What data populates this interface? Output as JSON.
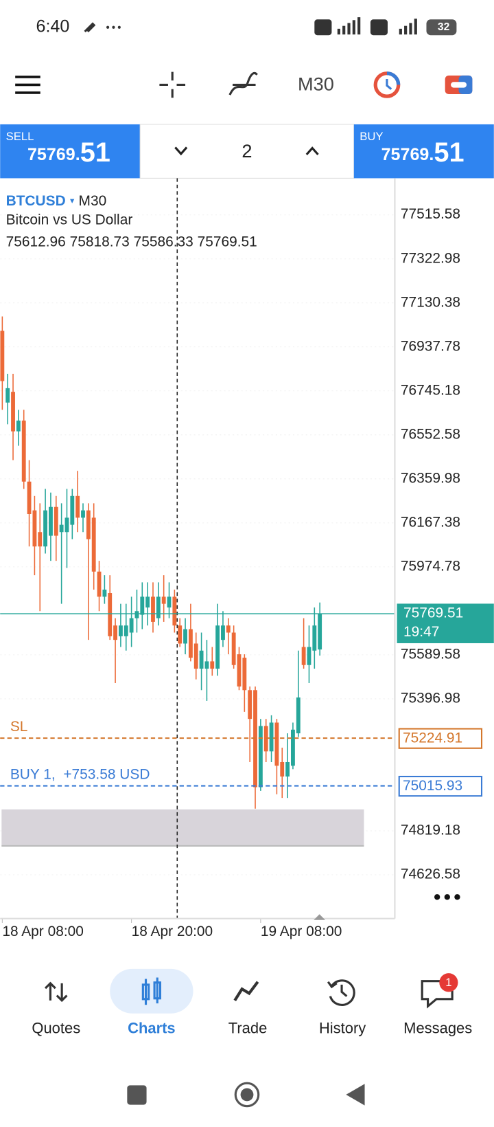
{
  "status_bar": {
    "time": "6:40",
    "battery": "32"
  },
  "toolbar": {
    "timeframe": "M30"
  },
  "trade_panel": {
    "sell": {
      "label": "SELL",
      "price_main": "75769.",
      "price_pips": "51"
    },
    "volume": "2",
    "buy": {
      "label": "BUY",
      "price_main": "75769.",
      "price_pips": "51"
    }
  },
  "chart_data": {
    "type": "candlestick",
    "symbol": "BTCUSD",
    "timeframe": "M30",
    "description": "Bitcoin vs US Dollar",
    "up_color": "#26a69a",
    "down_color": "#ec6a38",
    "open": [
      77008,
      76694,
      76741,
      76568,
      76615,
      76348,
      76222,
      76127,
      76064,
      76111,
      76237,
      76127,
      76127,
      76159,
      76285,
      76190,
      76222,
      76190,
      75954,
      75844,
      75860,
      75718,
      75671,
      75671,
      75687,
      75750,
      75765,
      75797,
      75844,
      75750,
      75844,
      75797,
      75844,
      75718,
      75639,
      75702,
      75639,
      75529,
      75529,
      75561,
      75529,
      75655,
      75718,
      75687,
      75592,
      75577,
      75435,
      75435,
      75010,
      75278,
      75167,
      75293,
      75120,
      75057,
      75104,
      75246,
      75624,
      75545,
      75608,
      75612.96
    ],
    "high": [
      77071,
      76820,
      76820,
      76662,
      76662,
      76442,
      76285,
      76253,
      76316,
      76300,
      76285,
      76253,
      76316,
      76316,
      76395,
      76253,
      76253,
      76253,
      76001,
      75938,
      75938,
      75750,
      75813,
      75813,
      75844,
      75875,
      75907,
      75907,
      75907,
      75907,
      75938,
      75907,
      75875,
      75750,
      75750,
      75813,
      75687,
      75687,
      75655,
      75624,
      75813,
      75781,
      75750,
      75718,
      75624,
      75592,
      75451,
      75451,
      75309,
      75309,
      75325,
      75309,
      75183,
      75246,
      75293,
      75608,
      75750,
      75718,
      75797,
      75818.73
    ],
    "low": [
      76662,
      76599,
      76442,
      76505,
      76316,
      76064,
      75938,
      75781,
      76033,
      76001,
      76001,
      75813,
      75970,
      76096,
      76127,
      76127,
      75655,
      75875,
      75781,
      75813,
      75655,
      75466,
      75624,
      75608,
      75624,
      75687,
      75702,
      75718,
      75687,
      75718,
      75734,
      75750,
      75687,
      75624,
      75592,
      75561,
      75482,
      75435,
      75388,
      75498,
      75498,
      75624,
      75592,
      75529,
      75435,
      75340,
      75120,
      74916,
      74994,
      75120,
      75120,
      74979,
      74963,
      74963,
      75089,
      75230,
      75529,
      75466,
      75529,
      75586.33
    ],
    "close": [
      76788,
      76757,
      76568,
      76615,
      76348,
      76206,
      76064,
      76064,
      76222,
      76237,
      76111,
      76159,
      76190,
      76285,
      76190,
      76222,
      76096,
      75954,
      75844,
      75875,
      75671,
      75655,
      75718,
      75718,
      75750,
      75781,
      75844,
      75844,
      75734,
      75844,
      75813,
      75844,
      75718,
      75639,
      75702,
      75577,
      75529,
      75608,
      75561,
      75529,
      75718,
      75718,
      75687,
      75545,
      75451,
      75435,
      75309,
      75010,
      75278,
      75167,
      75293,
      75104,
      75057,
      75120,
      75262,
      75403,
      75545,
      75624,
      75718,
      75769.51
    ],
    "xlim": [
      0,
      73
    ],
    "xticks": [
      {
        "value": 0,
        "label": "18 Apr 08:00"
      },
      {
        "value": 24,
        "label": "18 Apr 20:00"
      },
      {
        "value": 48,
        "label": "19 Apr 08:00"
      }
    ],
    "ylim": [
      74435,
      77676
    ],
    "yticks": [
      77515.58,
      77322.98,
      77130.38,
      76937.78,
      76745.18,
      76552.58,
      76359.98,
      76167.38,
      75974.78,
      75589.58,
      75396.98,
      74819.18,
      74626.58
    ],
    "grid": true,
    "price_line": {
      "color": "#26a69a",
      "timer": "19:47"
    },
    "lines": [
      {
        "label": "SL",
        "value": 75224.91,
        "color": "#d4772c"
      },
      {
        "label": "BUY 1,  +753.58 USD",
        "value": 75015.93,
        "color": "#3a7bd5"
      }
    ],
    "zone": [
      74753,
      74913
    ],
    "separator_x": 32.5
  },
  "bottom_nav": {
    "items": [
      "Quotes",
      "Charts",
      "Trade",
      "History",
      "Messages"
    ],
    "active": 1,
    "badge": "1"
  }
}
